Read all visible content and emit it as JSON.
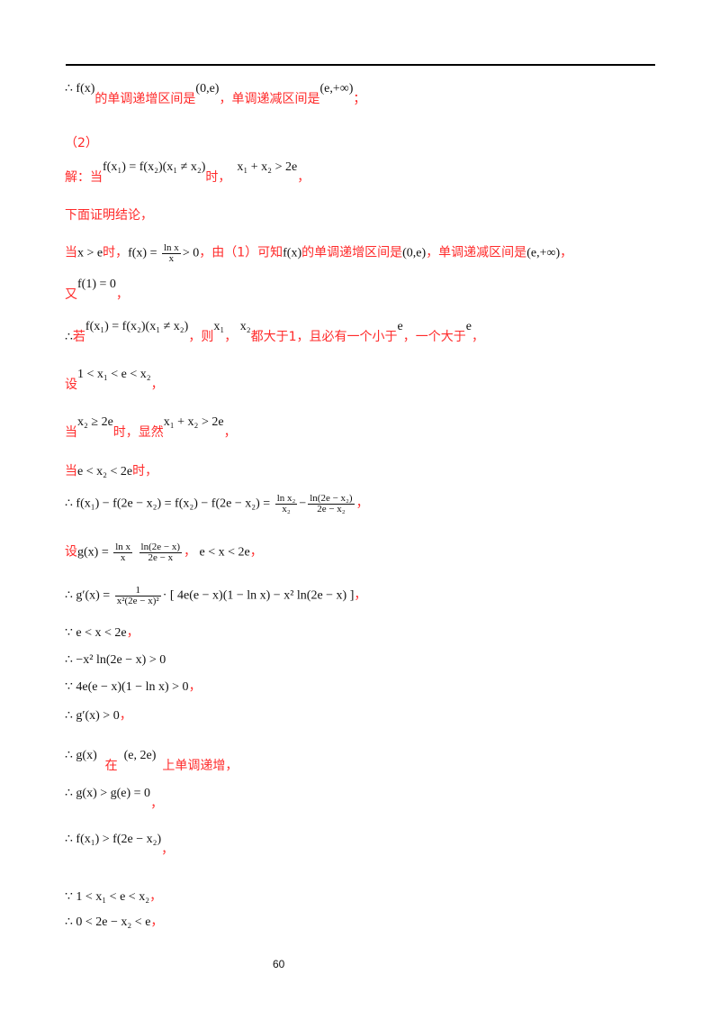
{
  "page_number": "60",
  "lines": [
    [
      {
        "k": "m",
        "t": "∴ f(x)",
        "u": 1
      },
      {
        "k": "r",
        "t": "的单调递增区间是"
      },
      {
        "k": "m",
        "t": "(0,e)",
        "u": 1
      },
      {
        "k": "r",
        "t": "，单调递减区间是"
      },
      {
        "k": "m",
        "t": "(e,+∞)",
        "u": 1
      },
      {
        "k": "r",
        "t": "；"
      }
    ],
    [
      {
        "k": "r",
        "t": "（2）"
      }
    ],
    [
      {
        "k": "r",
        "t": "解：当"
      },
      {
        "k": "m",
        "t": "f(x₁) = f(x₂)(x₁ ≠ x₂)",
        "u": 1
      },
      {
        "k": "r",
        "t": "时，"
      },
      {
        "k": "m",
        "t": "  x₁ + x₂ > 2e",
        "u": 1
      },
      {
        "k": "r",
        "t": "，"
      }
    ],
    [
      {
        "k": "r",
        "t": "下面证明结论，"
      }
    ],
    [
      {
        "k": "r",
        "t": "当"
      },
      {
        "k": "m",
        "t": "x > e"
      },
      {
        "k": "r",
        "t": "时，"
      },
      {
        "k": "m",
        "t": "f(x) = "
      },
      {
        "k": "f",
        "n": "ln x",
        "d": "x"
      },
      {
        "k": "m",
        "t": "> 0"
      },
      {
        "k": "r",
        "t": "，由（1）可知"
      },
      {
        "k": "m",
        "t": "f(x)"
      },
      {
        "k": "r",
        "t": "的单调递增区间是"
      },
      {
        "k": "m",
        "t": "(0,e)"
      },
      {
        "k": "r",
        "t": "，单调递减区间是"
      },
      {
        "k": "m",
        "t": "(e,+∞)"
      },
      {
        "k": "r",
        "t": "，"
      }
    ],
    [
      {
        "k": "r",
        "t": "又"
      },
      {
        "k": "m",
        "t": "f(1) = 0",
        "u": 1
      },
      {
        "k": "r",
        "t": "，"
      }
    ],
    [
      {
        "k": "m",
        "t": "∴"
      },
      {
        "k": "r",
        "t": "若"
      },
      {
        "k": "m",
        "t": "f(x₁) = f(x₂)(x₁ ≠ x₂)",
        "u": 1
      },
      {
        "k": "r",
        "t": "，则"
      },
      {
        "k": "m",
        "t": "x₁",
        "u": 1
      },
      {
        "k": "r",
        "t": "，"
      },
      {
        "k": "m",
        "t": " x₂",
        "u": 1
      },
      {
        "k": "r",
        "t": "都大于1，且必有一个小于"
      },
      {
        "k": "m",
        "t": "e",
        "u": 1
      },
      {
        "k": "r",
        "t": "，一个大于"
      },
      {
        "k": "m",
        "t": "e",
        "u": 1
      },
      {
        "k": "r",
        "t": "，"
      }
    ],
    [
      {
        "k": "r",
        "t": "设"
      },
      {
        "k": "m",
        "t": "1 < x₁ < e < x₂",
        "u": 1
      },
      {
        "k": "r",
        "t": "，"
      }
    ],
    [
      {
        "k": "r",
        "t": "当"
      },
      {
        "k": "m",
        "t": "x₂ ≥ 2e",
        "u": 1
      },
      {
        "k": "r",
        "t": "时，显然"
      },
      {
        "k": "m",
        "t": "x₁ + x₂ > 2e",
        "u": 1
      },
      {
        "k": "r",
        "t": "，"
      }
    ],
    [
      {
        "k": "r",
        "t": "当"
      },
      {
        "k": "m",
        "t": "e < x₂ < 2e"
      },
      {
        "k": "r",
        "t": "时，"
      }
    ],
    [
      {
        "k": "m",
        "t": "∴ f(x₁) − f(2e − x₂) = f(x₂) − f(2e − x₂) = "
      },
      {
        "k": "f",
        "n": "ln x₂",
        "d": "x₂"
      },
      {
        "k": "m",
        "t": "−"
      },
      {
        "k": "f",
        "n": "ln(2e − x₂)",
        "d": "2e − x₂"
      },
      {
        "k": "r",
        "t": "，"
      }
    ],
    [
      {
        "k": "r",
        "t": "设"
      },
      {
        "k": "m",
        "t": "g(x) = "
      },
      {
        "k": "f",
        "n": "ln x",
        "d": "x"
      },
      {
        "k": "m",
        "t": " "
      },
      {
        "k": "f",
        "n": "ln(2e − x)",
        "d": "2e − x"
      },
      {
        "k": "r",
        "t": "，"
      },
      {
        "k": "m",
        "t": " e < x < 2e"
      },
      {
        "k": "r",
        "t": "，"
      }
    ],
    [
      {
        "k": "m",
        "t": "∴ g′(x) = "
      },
      {
        "k": "f",
        "n": "1",
        "d": "x²(2e − x)²"
      },
      {
        "k": "m",
        "t": "· [ 4e(e − x)(1 − ln x) − x² ln(2e − x) ]"
      },
      {
        "k": "r",
        "t": "，"
      }
    ],
    [
      {
        "k": "m",
        "t": "∵ e < x < 2e"
      },
      {
        "k": "r",
        "t": "，"
      }
    ],
    [
      {
        "k": "m",
        "t": "∴ −x² ln(2e − x) > 0"
      }
    ],
    [
      {
        "k": "m",
        "t": "∵ 4e(e − x)(1 − ln x) > 0"
      },
      {
        "k": "r",
        "t": "，"
      }
    ],
    [
      {
        "k": "m",
        "t": "∴ g′(x) > 0"
      },
      {
        "k": "r",
        "t": "，"
      }
    ],
    [
      {
        "k": "m",
        "t": "∴ g(x)",
        "u": 1
      },
      {
        "k": "r",
        "t": "  在"
      },
      {
        "k": "m",
        "t": "  (e, 2e)  ",
        "u": 1
      },
      {
        "k": "r",
        "t": "上单调递增，"
      }
    ],
    [
      {
        "k": "m",
        "t": "∴ g(x) > g(e) = 0",
        "u": 1
      },
      {
        "k": "r",
        "t": "，"
      }
    ],
    [
      {
        "k": "m",
        "t": "∴ f(x₁) > f(2e − x₂)",
        "u": 1
      },
      {
        "k": "r",
        "t": "，"
      }
    ],
    [
      {
        "k": "m",
        "t": "∵ 1 < x₁ < e < x₂"
      },
      {
        "k": "r",
        "t": "，"
      }
    ],
    [
      {
        "k": "m",
        "t": "∴ 0 < 2e − x₂ < e"
      },
      {
        "k": "r",
        "t": "，"
      }
    ]
  ]
}
